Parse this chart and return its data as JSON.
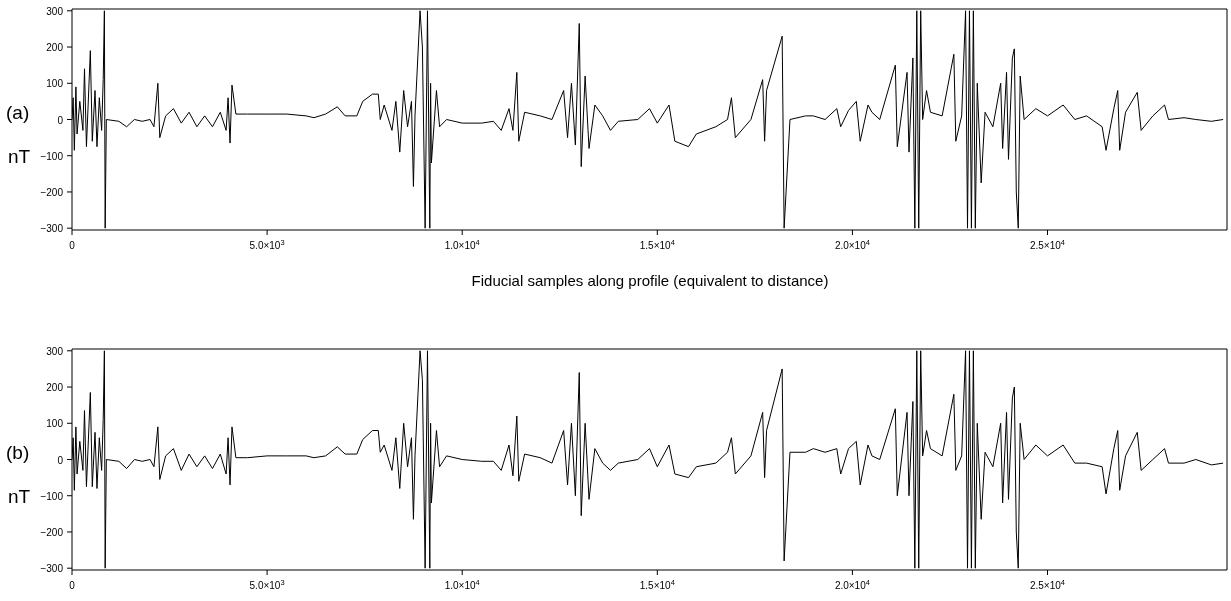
{
  "chart_data": [
    {
      "type": "line",
      "title": "(a)",
      "ylabel": "nT",
      "xlabel": "Fiducial samples along profile (equivalent to distance)",
      "color": "#000000",
      "line_style": "solid",
      "marker": "none",
      "xlim": [
        0,
        29600
      ],
      "ylim": [
        -305,
        305
      ],
      "xticks": [
        0,
        {
          "value": 5000,
          "label": "5.0×10$^{3}$"
        },
        {
          "value": 10000,
          "label": "1.0×10$^{4}$"
        },
        {
          "value": 15000,
          "label": "1.5×10$^{4}$"
        },
        {
          "value": 20000,
          "label": "2.0×10$^{4}$"
        },
        {
          "value": 25000,
          "label": "2.5×10$^{4}$"
        }
      ],
      "yticks": [
        -300,
        -200,
        -100,
        0,
        100,
        200,
        300
      ],
      "x": [
        0,
        30,
        60,
        100,
        130,
        200,
        280,
        320,
        370,
        470,
        520,
        590,
        640,
        700,
        760,
        800,
        830,
        850,
        880,
        1200,
        1400,
        1600,
        1800,
        2000,
        2100,
        2200,
        2250,
        2400,
        2600,
        2800,
        3000,
        3200,
        3400,
        3600,
        3800,
        3950,
        4000,
        4050,
        4100,
        4200,
        4500,
        5000,
        5500,
        6000,
        6200,
        6500,
        6800,
        7000,
        7300,
        7450,
        7700,
        7850,
        7900,
        8000,
        8200,
        8300,
        8400,
        8500,
        8600,
        8700,
        8750,
        8790,
        8920,
        8980,
        9050,
        9110,
        9170,
        9190,
        9210,
        9340,
        9420,
        9600,
        10000,
        10500,
        10800,
        11000,
        11200,
        11300,
        11400,
        11450,
        11600,
        12000,
        12300,
        12600,
        12700,
        12800,
        12900,
        13000,
        13050,
        13150,
        13250,
        13400,
        13600,
        13800,
        14000,
        14500,
        14800,
        15000,
        15300,
        15450,
        15800,
        16000,
        16500,
        16800,
        16900,
        17000,
        17400,
        17700,
        17750,
        17800,
        18200,
        18250,
        18400,
        18800,
        19000,
        19300,
        19600,
        19700,
        19900,
        20100,
        20200,
        20400,
        20500,
        20700,
        21100,
        21150,
        21400,
        21450,
        21550,
        21600,
        21650,
        21700,
        21750,
        21800,
        21900,
        22000,
        22300,
        22600,
        22650,
        22800,
        22900,
        22950,
        23000,
        23050,
        23100,
        23150,
        23200,
        23300,
        23400,
        23600,
        23800,
        23850,
        23950,
        24000,
        24100,
        24150,
        24200,
        24250,
        24300,
        24400,
        24700,
        25000,
        25400,
        25700,
        26000,
        26400,
        26500,
        26700,
        26800,
        26850,
        27000,
        27300,
        27400,
        27700,
        28000,
        28100,
        28500,
        28800,
        29200,
        29500
      ],
      "values": [
        0,
        60,
        -85,
        90,
        -40,
        50,
        -30,
        140,
        -75,
        190,
        -60,
        80,
        -75,
        60,
        -30,
        110,
        300,
        -300,
        0,
        -5,
        -20,
        0,
        -5,
        0,
        -20,
        100,
        -50,
        10,
        30,
        -10,
        20,
        -20,
        10,
        -20,
        20,
        -30,
        60,
        -65,
        95,
        15,
        15,
        15,
        15,
        10,
        5,
        15,
        35,
        10,
        10,
        50,
        70,
        70,
        0,
        40,
        -30,
        50,
        -90,
        80,
        -20,
        50,
        -185,
        10,
        300,
        200,
        -300,
        300,
        -300,
        100,
        -120,
        80,
        -20,
        0,
        -10,
        -10,
        -5,
        -30,
        30,
        -30,
        130,
        -60,
        20,
        10,
        0,
        80,
        -50,
        100,
        -70,
        265,
        -130,
        120,
        -80,
        40,
        10,
        -30,
        -5,
        0,
        30,
        -10,
        40,
        -60,
        -75,
        -40,
        -20,
        0,
        60,
        -50,
        0,
        110,
        -60,
        80,
        230,
        -300,
        0,
        10,
        10,
        0,
        30,
        -20,
        25,
        50,
        -60,
        40,
        20,
        0,
        150,
        -75,
        130,
        -90,
        170,
        -300,
        300,
        -300,
        300,
        0,
        80,
        20,
        10,
        180,
        -60,
        10,
        300,
        -300,
        300,
        -300,
        300,
        -300,
        100,
        -175,
        20,
        -20,
        100,
        -80,
        130,
        -110,
        170,
        195,
        -200,
        -300,
        120,
        0,
        30,
        10,
        40,
        0,
        10,
        -20,
        -85,
        30,
        80,
        -85,
        20,
        75,
        -30,
        10,
        40,
        0,
        5,
        0,
        -5,
        0
      ]
    },
    {
      "type": "line",
      "title": "(b)",
      "ylabel": "nT",
      "color": "#000000",
      "line_style": "solid",
      "marker": "none",
      "xlim": [
        0,
        29600
      ],
      "ylim": [
        -305,
        305
      ],
      "xticks": [
        0,
        {
          "value": 5000,
          "label": "5.0×10$^{3}$"
        },
        {
          "value": 10000,
          "label": "1.0×10$^{4}$"
        },
        {
          "value": 15000,
          "label": "1.5×10$^{4}$"
        },
        {
          "value": 20000,
          "label": "2.0×10$^{4}$"
        },
        {
          "value": 25000,
          "label": "2.5×10$^{4}$"
        }
      ],
      "yticks": [
        -300,
        -200,
        -100,
        0,
        100,
        200,
        300
      ],
      "x": [
        0,
        30,
        60,
        100,
        130,
        200,
        280,
        320,
        370,
        470,
        520,
        590,
        640,
        700,
        760,
        800,
        830,
        850,
        880,
        1200,
        1400,
        1600,
        1800,
        2000,
        2100,
        2200,
        2250,
        2400,
        2600,
        2800,
        3000,
        3200,
        3400,
        3600,
        3800,
        3950,
        4000,
        4050,
        4100,
        4200,
        4500,
        5000,
        5500,
        6000,
        6200,
        6500,
        6800,
        7000,
        7300,
        7450,
        7700,
        7850,
        7900,
        8000,
        8200,
        8300,
        8400,
        8500,
        8600,
        8700,
        8750,
        8790,
        8920,
        8980,
        9050,
        9110,
        9170,
        9190,
        9210,
        9340,
        9420,
        9600,
        10000,
        10500,
        10800,
        11000,
        11200,
        11300,
        11400,
        11450,
        11600,
        12000,
        12300,
        12600,
        12700,
        12800,
        12900,
        13000,
        13050,
        13150,
        13250,
        13400,
        13600,
        13800,
        14000,
        14500,
        14800,
        15000,
        15300,
        15450,
        15800,
        16000,
        16500,
        16800,
        16900,
        17000,
        17400,
        17700,
        17750,
        17800,
        18200,
        18250,
        18400,
        18800,
        19000,
        19300,
        19600,
        19700,
        19900,
        20100,
        20200,
        20400,
        20500,
        20700,
        21100,
        21150,
        21400,
        21450,
        21550,
        21600,
        21650,
        21700,
        21750,
        21800,
        21900,
        22000,
        22300,
        22600,
        22650,
        22800,
        22900,
        22950,
        23000,
        23050,
        23100,
        23150,
        23200,
        23300,
        23400,
        23600,
        23800,
        23850,
        23950,
        24000,
        24100,
        24150,
        24200,
        24250,
        24300,
        24400,
        24700,
        25000,
        25400,
        25700,
        26000,
        26400,
        26500,
        26700,
        26800,
        26850,
        27000,
        27300,
        27400,
        27700,
        28000,
        28100,
        28500,
        28800,
        29200,
        29500
      ],
      "values": [
        0,
        60,
        -85,
        90,
        -40,
        50,
        -30,
        135,
        -75,
        185,
        -75,
        75,
        -80,
        60,
        -30,
        110,
        300,
        -300,
        0,
        -5,
        -25,
        0,
        -5,
        0,
        -20,
        90,
        -55,
        10,
        30,
        -30,
        15,
        -20,
        10,
        -25,
        15,
        -40,
        60,
        -70,
        90,
        5,
        5,
        10,
        10,
        10,
        5,
        10,
        35,
        15,
        15,
        55,
        80,
        80,
        20,
        40,
        -30,
        60,
        -80,
        100,
        -20,
        60,
        -165,
        10,
        300,
        220,
        -300,
        300,
        -300,
        100,
        -120,
        80,
        -20,
        10,
        0,
        -5,
        -5,
        -30,
        40,
        -45,
        120,
        -60,
        15,
        5,
        -10,
        80,
        -70,
        100,
        -100,
        240,
        -155,
        100,
        -110,
        30,
        -10,
        -30,
        -10,
        0,
        30,
        -20,
        40,
        -40,
        -50,
        -20,
        -10,
        20,
        60,
        -40,
        10,
        130,
        -50,
        80,
        250,
        -280,
        20,
        20,
        30,
        20,
        30,
        -40,
        30,
        50,
        -70,
        40,
        10,
        0,
        140,
        -100,
        130,
        -100,
        160,
        -300,
        300,
        -300,
        300,
        10,
        80,
        30,
        10,
        180,
        -30,
        10,
        300,
        -300,
        300,
        -300,
        300,
        -300,
        100,
        -165,
        20,
        -20,
        100,
        -120,
        130,
        -110,
        170,
        200,
        -200,
        -300,
        100,
        0,
        40,
        10,
        40,
        -10,
        -10,
        -20,
        -95,
        30,
        80,
        -85,
        10,
        75,
        -30,
        0,
        30,
        -10,
        -10,
        0,
        -15,
        -10
      ]
    }
  ]
}
